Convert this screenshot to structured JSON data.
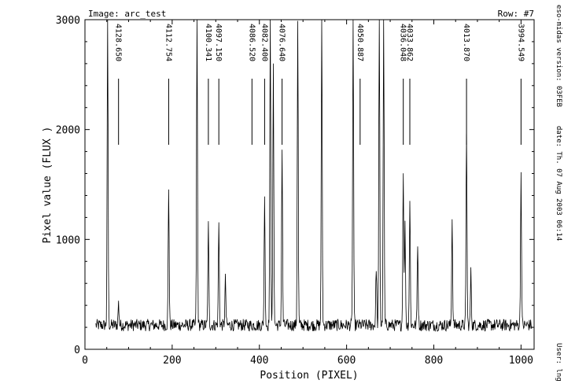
{
  "header": {
    "image_label": "Image: arc_test",
    "row_label": "Row: #7"
  },
  "side_info": {
    "version": "eso-midas version: 03FEB",
    "date": "date: Th. 07 Aug 2003 06:14",
    "user": "User: lng"
  },
  "chart_data": {
    "type": "line",
    "title": "",
    "xlabel": "Position (PIXEL)",
    "ylabel": "Pixel value (FLUX )",
    "xlim": [
      0,
      1030
    ],
    "ylim": [
      0,
      3000
    ],
    "xticks": [
      0,
      200,
      400,
      600,
      800,
      1000
    ],
    "yticks": [
      0,
      1000,
      2000,
      3000
    ],
    "x_range_data": [
      25,
      1025
    ],
    "baseline_flux": 220,
    "peaks": [
      {
        "x": 52,
        "y": 3000
      },
      {
        "x": 77,
        "y": 420
      },
      {
        "x": 192,
        "y": 1470
      },
      {
        "x": 257,
        "y": 3000
      },
      {
        "x": 283,
        "y": 1130
      },
      {
        "x": 307,
        "y": 1140
      },
      {
        "x": 322,
        "y": 640
      },
      {
        "x": 412,
        "y": 1360
      },
      {
        "x": 425,
        "y": 3000
      },
      {
        "x": 432,
        "y": 2550
      },
      {
        "x": 452,
        "y": 1820
      },
      {
        "x": 488,
        "y": 3000
      },
      {
        "x": 543,
        "y": 3000
      },
      {
        "x": 615,
        "y": 3000
      },
      {
        "x": 668,
        "y": 760
      },
      {
        "x": 675,
        "y": 3000
      },
      {
        "x": 685,
        "y": 3000
      },
      {
        "x": 730,
        "y": 1630
      },
      {
        "x": 734,
        "y": 1130
      },
      {
        "x": 745,
        "y": 1350
      },
      {
        "x": 763,
        "y": 980
      },
      {
        "x": 842,
        "y": 1190
      },
      {
        "x": 875,
        "y": 1990
      },
      {
        "x": 885,
        "y": 700
      },
      {
        "x": 1000,
        "y": 1600
      }
    ],
    "line_identifications": [
      {
        "label": "4128.650",
        "x": 77
      },
      {
        "label": "4112.754",
        "x": 192
      },
      {
        "label": "4100.341",
        "x": 283
      },
      {
        "label": "4097.150",
        "x": 307
      },
      {
        "label": "4086.520",
        "x": 383
      },
      {
        "label": "4082.400",
        "x": 412
      },
      {
        "label": "4076.640",
        "x": 452
      },
      {
        "label": "4050.887",
        "x": 631
      },
      {
        "label": "4036.048",
        "x": 730
      },
      {
        "label": "4033.862",
        "x": 745
      },
      {
        "label": "4013.870",
        "x": 875
      },
      {
        "label": "3994.549",
        "x": 1000
      }
    ]
  },
  "colors": {
    "line": "#000000",
    "background": "#ffffff"
  }
}
